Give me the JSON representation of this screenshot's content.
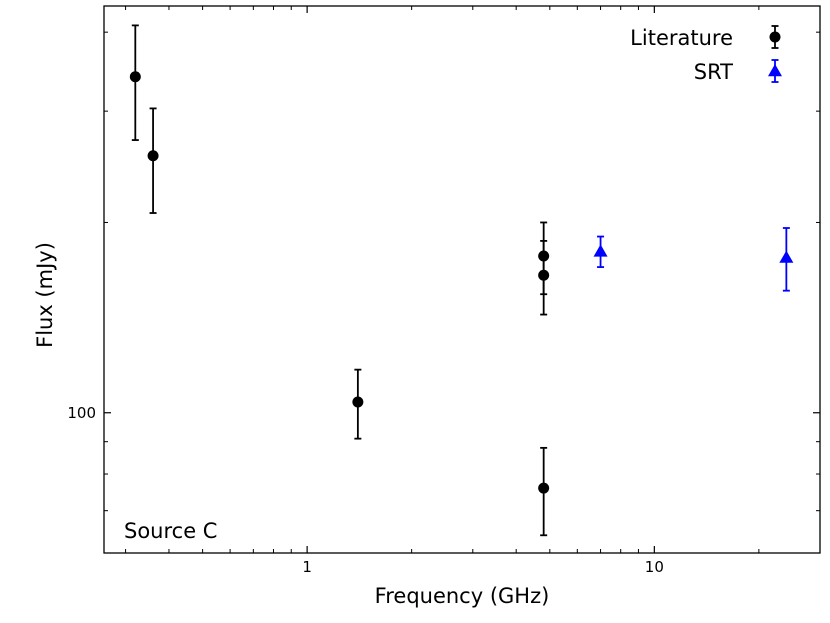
{
  "chart_data": {
    "type": "scatter",
    "title": "",
    "xlabel": "Frequency (GHz)",
    "ylabel": "Flux (mJy)",
    "x_scale": "log",
    "y_scale": "log",
    "xlim": [
      0.26,
      30
    ],
    "ylim": [
      60,
      440
    ],
    "x_ticks": [
      {
        "value": 1,
        "label": "1"
      },
      {
        "value": 10,
        "label": "10"
      }
    ],
    "y_ticks": [
      {
        "value": 100,
        "label": "100"
      }
    ],
    "grid": false,
    "legend_position": "top-right",
    "annotation": "Source C",
    "series": [
      {
        "name": "Literature",
        "marker": "circle",
        "color": "#000000",
        "points": [
          {
            "x": 0.32,
            "y": 340,
            "err": 70
          },
          {
            "x": 0.36,
            "y": 255,
            "err": 48
          },
          {
            "x": 1.4,
            "y": 104,
            "err": 13
          },
          {
            "x": 4.8,
            "y": 177,
            "err": 23
          },
          {
            "x": 4.8,
            "y": 165,
            "err": 22
          },
          {
            "x": 4.8,
            "y": 76,
            "err": 12
          }
        ]
      },
      {
        "name": "SRT",
        "marker": "triangle",
        "color": "#0000ff",
        "points": [
          {
            "x": 7.0,
            "y": 180,
            "err": 10
          },
          {
            "x": 24.0,
            "y": 176,
            "err": 20
          }
        ]
      }
    ]
  }
}
